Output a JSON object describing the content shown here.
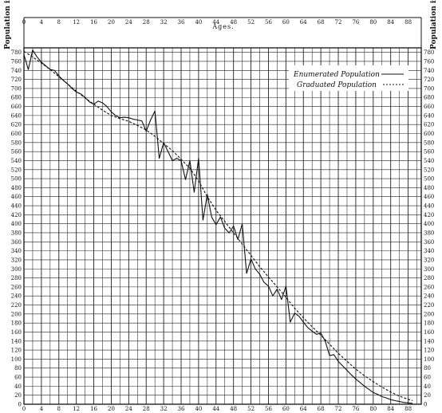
{
  "chart_data": {
    "type": "line",
    "xlabel": "Ages.",
    "ylabel_left": "Population in thousands.",
    "ylabel_right": "Population in thousands.",
    "xlim": [
      0,
      91
    ],
    "ylim": [
      0,
      790
    ],
    "x_ticks": [
      0,
      4,
      8,
      12,
      16,
      20,
      24,
      28,
      32,
      36,
      40,
      44,
      48,
      52,
      56,
      60,
      64,
      68,
      72,
      76,
      80,
      84,
      88
    ],
    "y_ticks": [
      0,
      20,
      40,
      60,
      80,
      100,
      120,
      140,
      160,
      180,
      200,
      220,
      240,
      260,
      280,
      300,
      320,
      340,
      360,
      380,
      400,
      420,
      440,
      460,
      480,
      500,
      520,
      540,
      560,
      580,
      600,
      620,
      640,
      660,
      680,
      700,
      720,
      740,
      760,
      780
    ],
    "grid": true,
    "legend_position": "top-right",
    "series": [
      {
        "name": "Enumerated Population",
        "style": "solid",
        "x": [
          0,
          1,
          2,
          3,
          4,
          5,
          6,
          7,
          8,
          9,
          10,
          11,
          12,
          13,
          14,
          15,
          16,
          17,
          18,
          19,
          20,
          21,
          22,
          23,
          24,
          25,
          26,
          27,
          28,
          29,
          30,
          31,
          32,
          33,
          34,
          35,
          36,
          37,
          38,
          39,
          40,
          41,
          42,
          43,
          44,
          45,
          46,
          47,
          48,
          49,
          50,
          51,
          52,
          53,
          54,
          55,
          56,
          57,
          58,
          59,
          60,
          61,
          62,
          63,
          64,
          65,
          66,
          67,
          68,
          69,
          70,
          71,
          72,
          73,
          74,
          75,
          76,
          77,
          78,
          79,
          80,
          81,
          82,
          83,
          84,
          85,
          86,
          87,
          88,
          89
        ],
        "y": [
          775,
          742,
          785,
          770,
          758,
          750,
          742,
          740,
          728,
          718,
          710,
          700,
          692,
          688,
          680,
          670,
          665,
          672,
          668,
          660,
          648,
          640,
          635,
          636,
          635,
          632,
          630,
          628,
          605,
          630,
          650,
          545,
          580,
          560,
          540,
          545,
          540,
          498,
          540,
          470,
          545,
          408,
          465,
          415,
          398,
          415,
          390,
          380,
          395,
          365,
          400,
          290,
          322,
          300,
          288,
          270,
          262,
          240,
          255,
          232,
          262,
          182,
          202,
          195,
          182,
          170,
          162,
          155,
          158,
          140,
          108,
          110,
          95,
          85,
          75,
          65,
          56,
          48,
          40,
          33,
          26,
          22,
          17,
          14,
          10,
          8,
          6,
          4,
          3,
          2
        ]
      },
      {
        "name": "Graduated Population",
        "style": "dashed",
        "x": [
          0,
          2,
          4,
          6,
          8,
          10,
          12,
          14,
          16,
          18,
          20,
          22,
          24,
          26,
          28,
          30,
          32,
          34,
          36,
          38,
          40,
          42,
          44,
          46,
          48,
          50,
          52,
          54,
          56,
          58,
          60,
          62,
          64,
          66,
          68,
          70,
          72,
          74,
          76,
          78,
          80,
          82,
          84,
          86,
          88,
          89
        ],
        "y": [
          782,
          770,
          756,
          742,
          726,
          710,
          694,
          679,
          665,
          652,
          640,
          633,
          627,
          618,
          608,
          594,
          578,
          562,
          543,
          523,
          495,
          460,
          430,
          405,
          380,
          355,
          330,
          305,
          282,
          260,
          237,
          213,
          192,
          172,
          153,
          133,
          113,
          95,
          78,
          63,
          50,
          38,
          27,
          18,
          11,
          8
        ]
      }
    ]
  }
}
